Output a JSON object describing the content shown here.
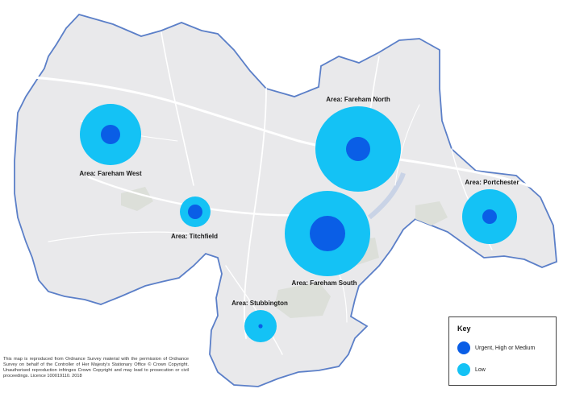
{
  "colors": {
    "water": "#ffffff",
    "land": "#e9e9eb",
    "coast": "#5b7fc8",
    "urgent": "#0a5ee6",
    "low": "#14c2f5",
    "roads": "#ffffff",
    "green": "#d9dcd6"
  },
  "areas": [
    {
      "id": "fareham-west",
      "label": "Area: Fareham West",
      "urgent_value": 3,
      "low_value": 14
    },
    {
      "id": "titchfield",
      "label": "Area: Titchfield",
      "urgent_value": 2,
      "low_value": 5
    },
    {
      "id": "fareham-north",
      "label": "Area: Fareham North",
      "urgent_value": 4,
      "low_value": 32
    },
    {
      "id": "fareham-south",
      "label": "Area: Fareham South",
      "urgent_value": 10,
      "low_value": 30
    },
    {
      "id": "portchester",
      "label": "Area: Portchester",
      "urgent_value": 2,
      "low_value": 11
    },
    {
      "id": "stubbington",
      "label": "Area: Stubbington",
      "urgent_value": 0.1,
      "low_value": 3.5
    }
  ],
  "key": {
    "title": "Key",
    "items": [
      {
        "label": "Urgent, High or Medium",
        "color_key": "urgent"
      },
      {
        "label": "Low",
        "color_key": "low"
      }
    ]
  },
  "copyright": "This map is reproduced from Ordnance Survey material with the permission of Ordnance Survey on behalf of the Controller of Her Majesty's Stationary Office © Crown Copyright. Unauthorised reproduction infringes Crown Copyright and may lead to prosecution or civil proceedings. Licence 100019110. 2018"
}
